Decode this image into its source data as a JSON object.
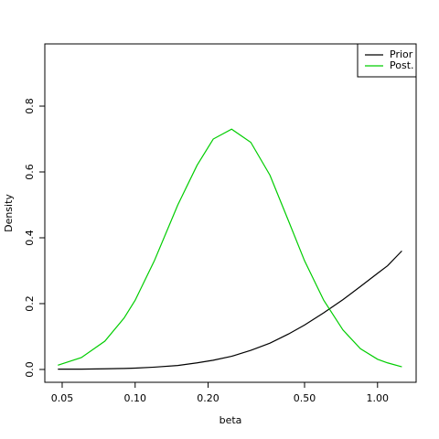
{
  "chart_data": {
    "type": "line",
    "xlabel": "beta",
    "ylabel": "Density",
    "xscale": "log",
    "x": [
      0.048,
      0.06,
      0.075,
      0.09,
      0.1,
      0.12,
      0.15,
      0.18,
      0.21,
      0.25,
      0.3,
      0.36,
      0.43,
      0.5,
      0.6,
      0.72,
      0.85,
      1.0,
      1.1,
      1.26
    ],
    "series": [
      {
        "name": "Prior",
        "color": "#000000",
        "values": [
          0.001,
          0.001,
          0.002,
          0.003,
          0.004,
          0.007,
          0.012,
          0.02,
          0.028,
          0.04,
          0.058,
          0.08,
          0.108,
          0.135,
          0.172,
          0.212,
          0.252,
          0.292,
          0.315,
          0.36
        ]
      },
      {
        "name": "Post.",
        "color": "#00cd00",
        "values": [
          0.013,
          0.036,
          0.086,
          0.156,
          0.21,
          0.33,
          0.5,
          0.62,
          0.7,
          0.73,
          0.69,
          0.59,
          0.45,
          0.33,
          0.21,
          0.12,
          0.063,
          0.031,
          0.02,
          0.008
        ]
      }
    ],
    "xlim": [
      0.0424,
      1.443
    ],
    "ylim": [
      -0.039,
      0.989
    ],
    "xticks": [
      0.05,
      {
        "value": 0.1,
        "label": "0.10"
      },
      {
        "value": 0.2,
        "label": "0.20"
      },
      {
        "value": 0.5,
        "label": "0.50"
      },
      {
        "value": 1,
        "label": "1.00"
      }
    ],
    "yticks": [
      {
        "value": 0,
        "label": "0.0"
      },
      {
        "value": 0.2,
        "label": "0.2"
      },
      {
        "value": 0.4,
        "label": "0.4"
      },
      {
        "value": 0.6,
        "label": "0.6"
      },
      {
        "value": 0.8,
        "label": "0.8"
      }
    ],
    "legend": "top-right"
  }
}
